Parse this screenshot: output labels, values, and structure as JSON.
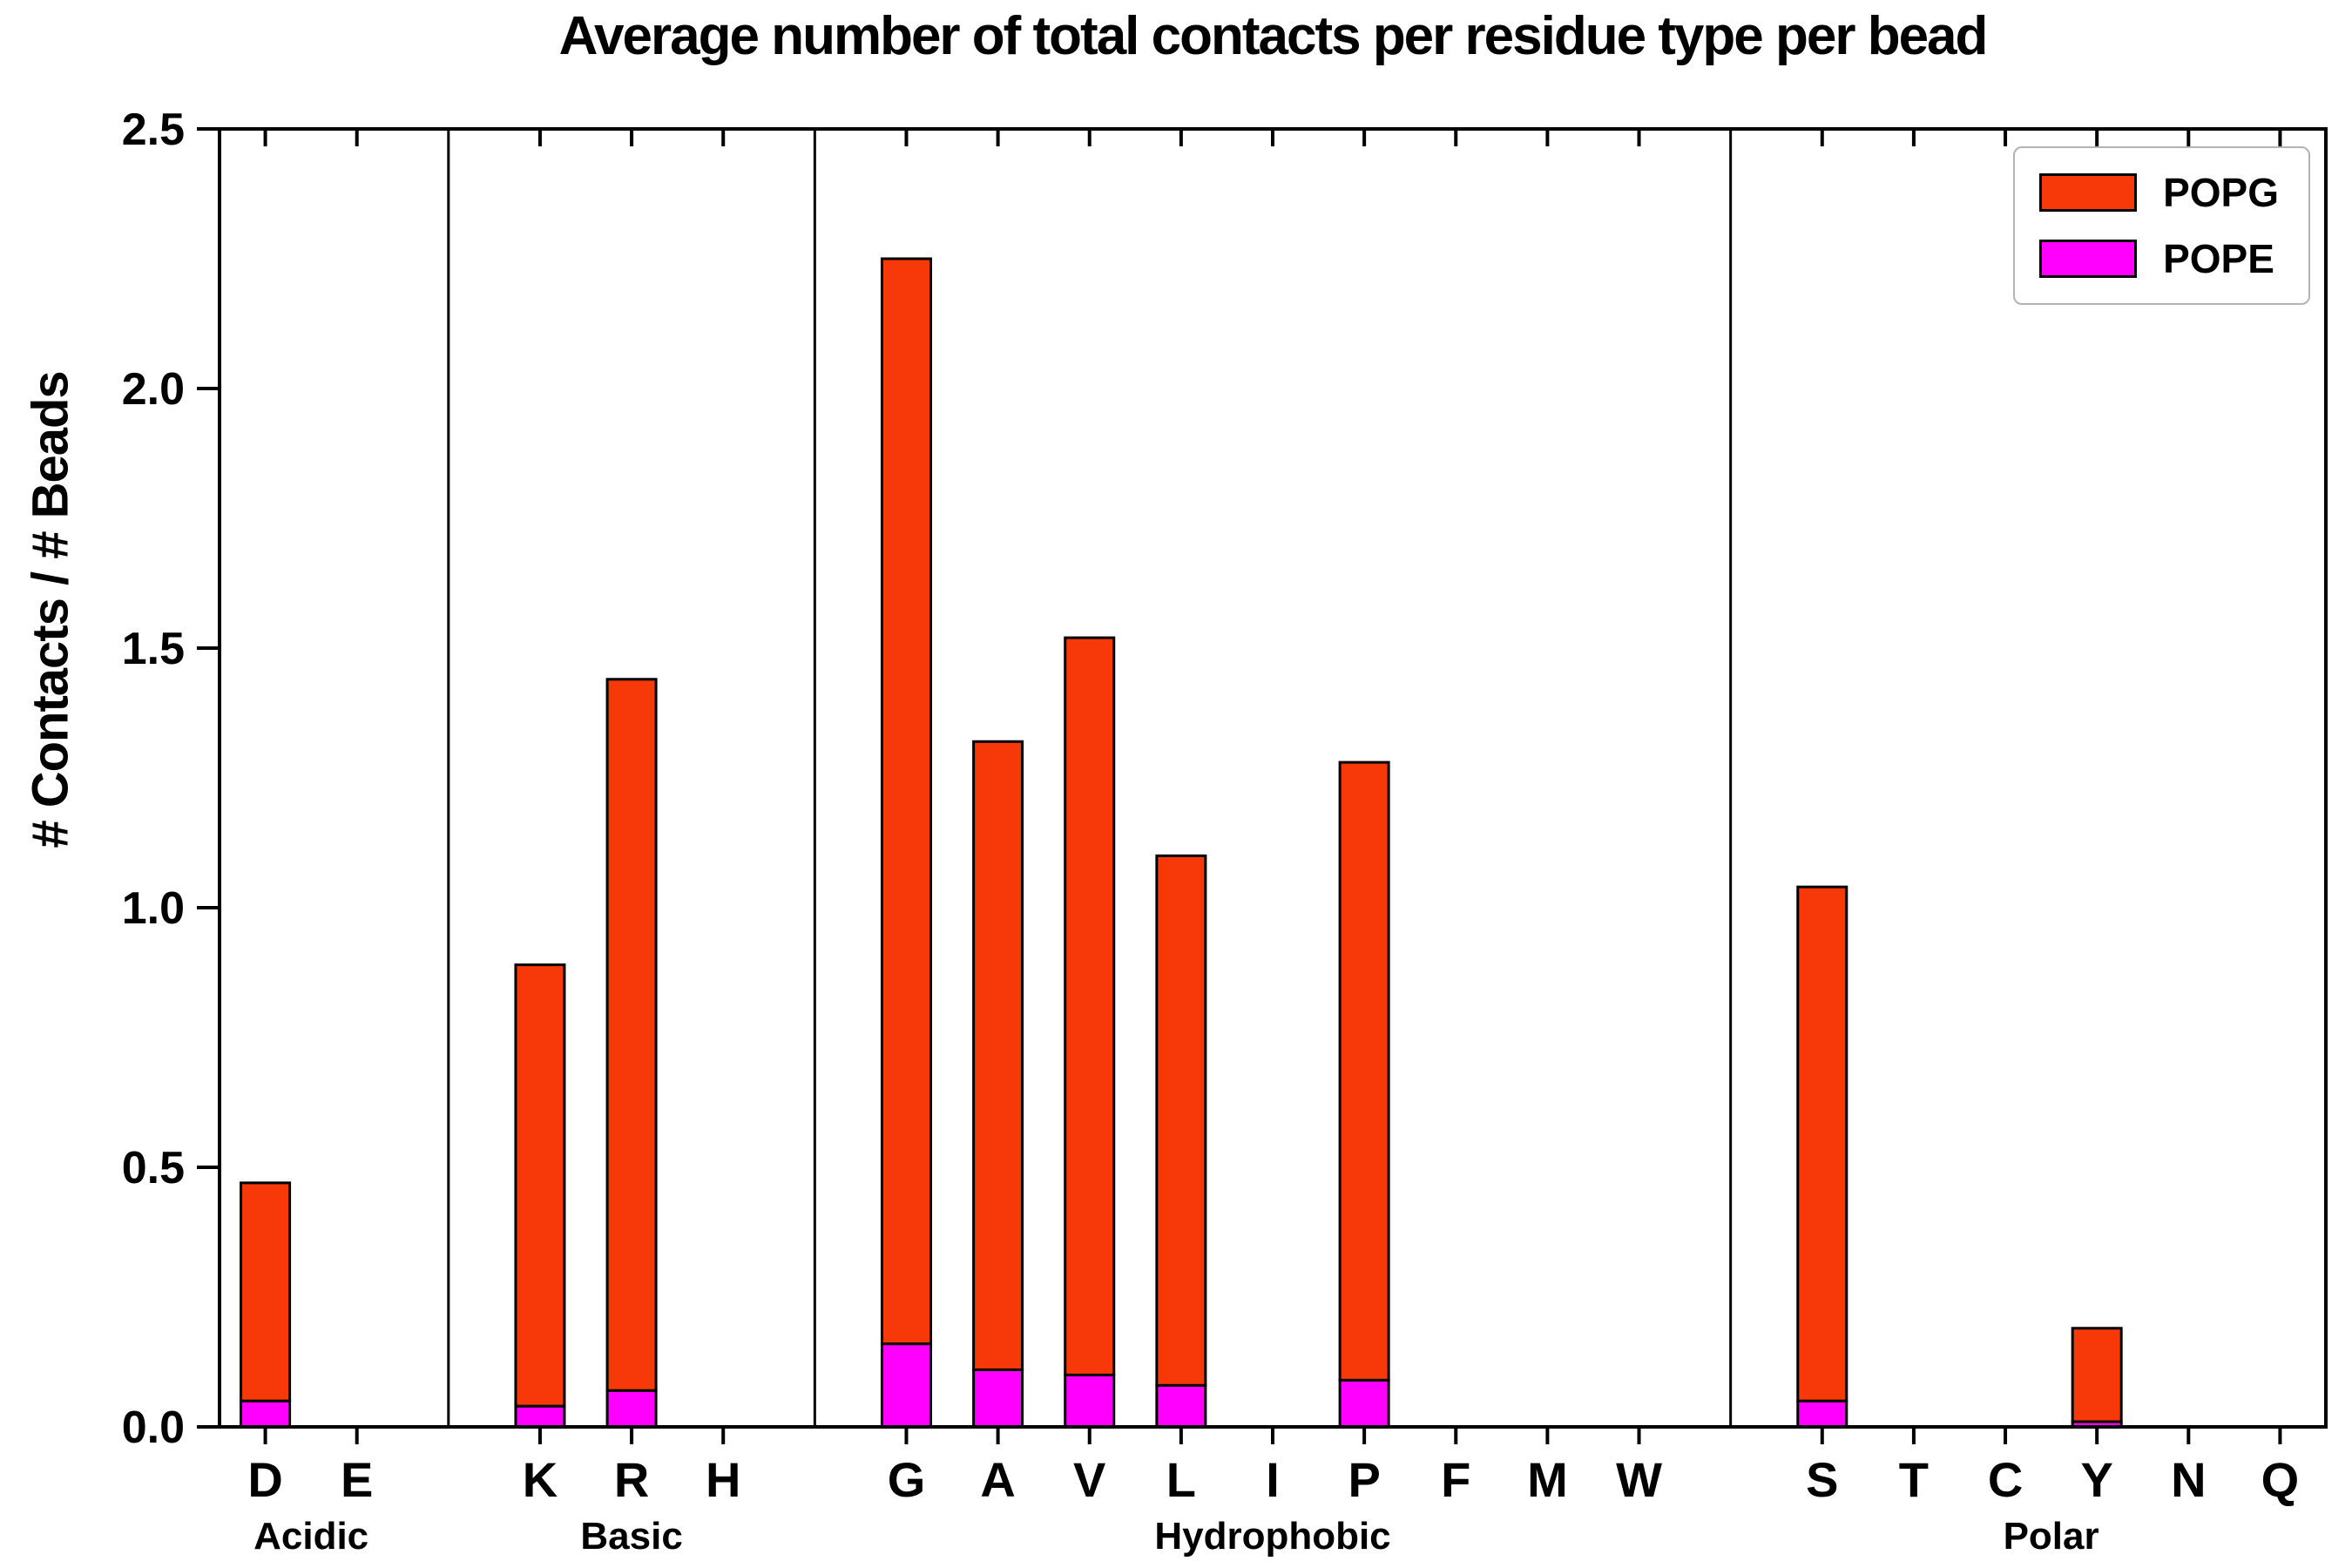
{
  "figure": {
    "background": "#ffffff",
    "axis_color": "#000000"
  },
  "chart_data": {
    "type": "bar",
    "stacked": true,
    "title": "Average number of total contacts per residue type per bead",
    "ylabel": "# Contacts / # Beads",
    "xlabel": "",
    "ylim": [
      0,
      2.5
    ],
    "grid": false,
    "legend_position": "upper right",
    "yticks": [
      "0.0",
      "0.5",
      "1.0",
      "1.5",
      "2.0",
      "2.5"
    ],
    "ytick_values": [
      0,
      0.5,
      1.0,
      1.5,
      2.0,
      2.5
    ],
    "groups": [
      {
        "label": "Acidic",
        "residues": [
          "D",
          "E"
        ]
      },
      {
        "label": "Basic",
        "residues": [
          "K",
          "R",
          "H"
        ]
      },
      {
        "label": "Hydrophobic",
        "residues": [
          "G",
          "A",
          "V",
          "L",
          "I",
          "P",
          "F",
          "M",
          "W"
        ]
      },
      {
        "label": "Polar",
        "residues": [
          "S",
          "T",
          "C",
          "Y",
          "N",
          "Q"
        ]
      }
    ],
    "categories": [
      "D",
      "E",
      "K",
      "R",
      "H",
      "G",
      "A",
      "V",
      "L",
      "I",
      "P",
      "F",
      "M",
      "W",
      "S",
      "T",
      "C",
      "Y",
      "N",
      "Q"
    ],
    "stack_order": [
      "POPE",
      "POPG"
    ],
    "series": [
      {
        "name": "POPG",
        "color": "#F73808",
        "values": [
          0.42,
          0,
          0.85,
          1.37,
          0,
          2.09,
          1.21,
          1.42,
          1.02,
          0,
          1.19,
          0,
          0,
          0,
          0.99,
          0,
          0,
          0.18,
          0,
          0
        ]
      },
      {
        "name": "POPE",
        "color": "#FF00FF",
        "values": [
          0.05,
          0,
          0.04,
          0.07,
          0,
          0.16,
          0.11,
          0.1,
          0.08,
          0,
          0.09,
          0,
          0,
          0,
          0.05,
          0,
          0,
          0.01,
          0,
          0
        ]
      }
    ],
    "totals": [
      0.47,
      0,
      0.89,
      1.44,
      0,
      2.25,
      1.32,
      1.52,
      1.1,
      0,
      1.28,
      0,
      0,
      0,
      1.04,
      0,
      0,
      0.19,
      0,
      0
    ],
    "bar_edge_color": "#000000"
  }
}
